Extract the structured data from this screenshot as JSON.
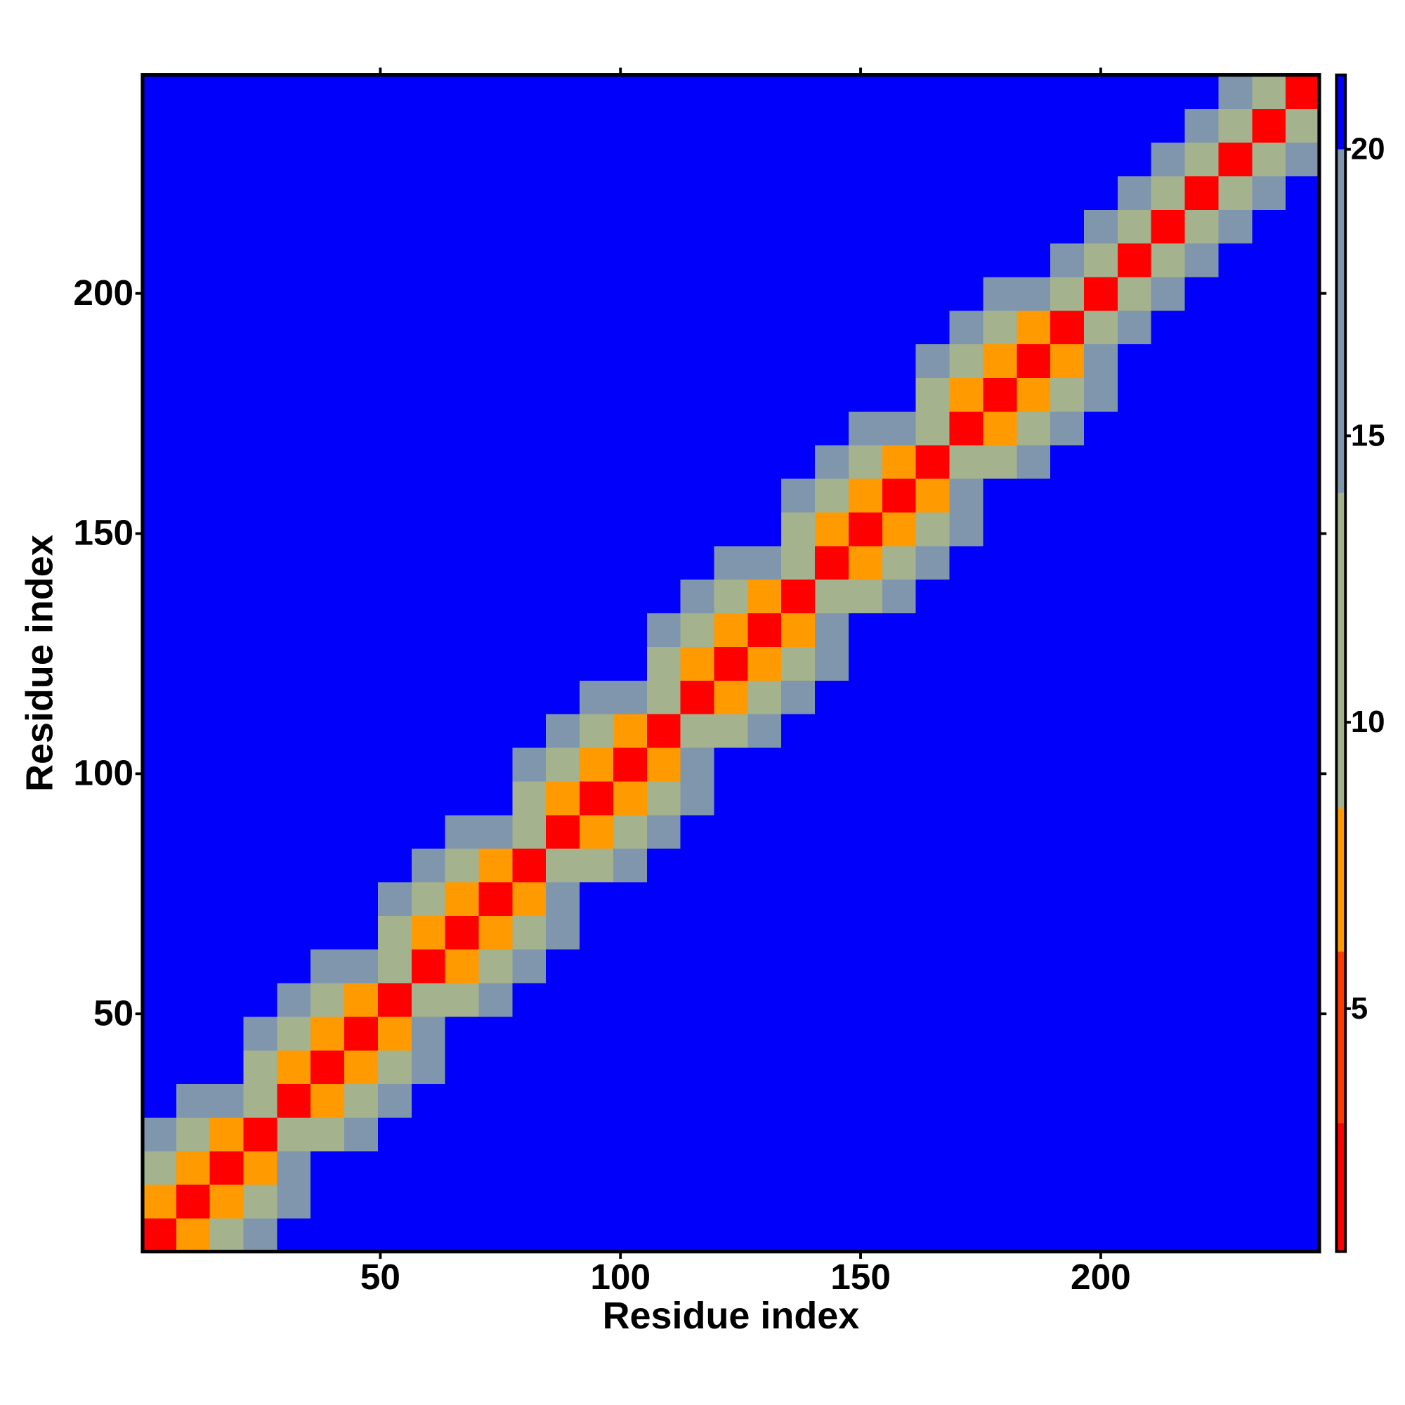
{
  "chart_data": {
    "type": "heatmap",
    "xlabel": "Residue index",
    "ylabel": "Residue index",
    "xlim": [
      0.5,
      245.5
    ],
    "ylim": [
      0.5,
      245.5
    ],
    "xticks": [
      50,
      100,
      150,
      200
    ],
    "yticks": [
      50,
      100,
      150,
      200
    ],
    "clim": [
      0.76,
      21.3
    ],
    "cticks": [
      5,
      10,
      15,
      20
    ],
    "color_bounds": [
      3,
      6,
      8.5,
      14,
      20
    ],
    "colors": [
      "#ff0000",
      "#ff3a00",
      "#ff9a00",
      "#a4b28e",
      "#7f96ad",
      "#0000fb"
    ],
    "bins": [
      0.5,
      7.5,
      14.5,
      21.5,
      28.5,
      35.5,
      42.5,
      49.5,
      56.5,
      63.5,
      70.5,
      77.5,
      84.5,
      91.5,
      98.5,
      105.5,
      112.5,
      119.5,
      126.5,
      133.5,
      140.5,
      147.5,
      154.5,
      161.5,
      168.5,
      175.5,
      182.5,
      189.5,
      196.5,
      203.5,
      210.5,
      217.5,
      224.5,
      231.5,
      238.5,
      245.5
    ],
    "values": [
      [
        3,
        8,
        13,
        17,
        25,
        25,
        25,
        25,
        25,
        25,
        25,
        25,
        25,
        25,
        25,
        25,
        25,
        25,
        25,
        25,
        25,
        25,
        25,
        25,
        25,
        25,
        25,
        25,
        25,
        25,
        25,
        25,
        25,
        25,
        25
      ],
      [
        8,
        3,
        8,
        13,
        17,
        25,
        25,
        25,
        25,
        25,
        25,
        25,
        25,
        25,
        25,
        25,
        25,
        25,
        25,
        25,
        25,
        25,
        25,
        25,
        25,
        25,
        25,
        25,
        25,
        25,
        25,
        25,
        25,
        25,
        25
      ],
      [
        13,
        8,
        3,
        8,
        19,
        25,
        25,
        25,
        25,
        25,
        25,
        25,
        25,
        25,
        25,
        25,
        25,
        25,
        25,
        25,
        25,
        25,
        25,
        25,
        25,
        25,
        25,
        25,
        25,
        25,
        25,
        25,
        25,
        25,
        25
      ],
      [
        17,
        13,
        8,
        3,
        11,
        13,
        17,
        25,
        25,
        25,
        25,
        25,
        25,
        25,
        25,
        25,
        25,
        25,
        25,
        25,
        25,
        25,
        25,
        25,
        25,
        25,
        25,
        25,
        25,
        25,
        25,
        25,
        25,
        25,
        25
      ],
      [
        25,
        17,
        19,
        11,
        3,
        8,
        13,
        17,
        25,
        25,
        25,
        25,
        25,
        25,
        25,
        25,
        25,
        25,
        25,
        25,
        25,
        25,
        25,
        25,
        25,
        25,
        25,
        25,
        25,
        25,
        25,
        25,
        25,
        25,
        25
      ],
      [
        25,
        25,
        25,
        13,
        8,
        3,
        8,
        13,
        17,
        25,
        25,
        25,
        25,
        25,
        25,
        25,
        25,
        25,
        25,
        25,
        25,
        25,
        25,
        25,
        25,
        25,
        25,
        25,
        25,
        25,
        25,
        25,
        25,
        25,
        25
      ],
      [
        25,
        25,
        25,
        17,
        13,
        8,
        3,
        8,
        19,
        25,
        25,
        25,
        25,
        25,
        25,
        25,
        25,
        25,
        25,
        25,
        25,
        25,
        25,
        25,
        25,
        25,
        25,
        25,
        25,
        25,
        25,
        25,
        25,
        25,
        25
      ],
      [
        25,
        25,
        25,
        25,
        17,
        13,
        8,
        3,
        11,
        13,
        17,
        25,
        25,
        25,
        25,
        25,
        25,
        25,
        25,
        25,
        25,
        25,
        25,
        25,
        25,
        25,
        25,
        25,
        25,
        25,
        25,
        25,
        25,
        25,
        25
      ],
      [
        25,
        25,
        25,
        25,
        25,
        17,
        19,
        11,
        3,
        8,
        13,
        17,
        25,
        25,
        25,
        25,
        25,
        25,
        25,
        25,
        25,
        25,
        25,
        25,
        25,
        25,
        25,
        25,
        25,
        25,
        25,
        25,
        25,
        25,
        25
      ],
      [
        25,
        25,
        25,
        25,
        25,
        25,
        25,
        13,
        8,
        3,
        8,
        13,
        17,
        25,
        25,
        25,
        25,
        25,
        25,
        25,
        25,
        25,
        25,
        25,
        25,
        25,
        25,
        25,
        25,
        25,
        25,
        25,
        25,
        25,
        25
      ],
      [
        25,
        25,
        25,
        25,
        25,
        25,
        25,
        17,
        13,
        8,
        3,
        8,
        19,
        25,
        25,
        25,
        25,
        25,
        25,
        25,
        25,
        25,
        25,
        25,
        25,
        25,
        25,
        25,
        25,
        25,
        25,
        25,
        25,
        25,
        25
      ],
      [
        25,
        25,
        25,
        25,
        25,
        25,
        25,
        25,
        17,
        13,
        8,
        3,
        11,
        13,
        17,
        25,
        25,
        25,
        25,
        25,
        25,
        25,
        25,
        25,
        25,
        25,
        25,
        25,
        25,
        25,
        25,
        25,
        25,
        25,
        25
      ],
      [
        25,
        25,
        25,
        25,
        25,
        25,
        25,
        25,
        25,
        17,
        19,
        11,
        3,
        8,
        13,
        17,
        25,
        25,
        25,
        25,
        25,
        25,
        25,
        25,
        25,
        25,
        25,
        25,
        25,
        25,
        25,
        25,
        25,
        25,
        25
      ],
      [
        25,
        25,
        25,
        25,
        25,
        25,
        25,
        25,
        25,
        25,
        25,
        13,
        8,
        3,
        8,
        13,
        17,
        25,
        25,
        25,
        25,
        25,
        25,
        25,
        25,
        25,
        25,
        25,
        25,
        25,
        25,
        25,
        25,
        25,
        25
      ],
      [
        25,
        25,
        25,
        25,
        25,
        25,
        25,
        25,
        25,
        25,
        25,
        17,
        13,
        8,
        3,
        8,
        19,
        25,
        25,
        25,
        25,
        25,
        25,
        25,
        25,
        25,
        25,
        25,
        25,
        25,
        25,
        25,
        25,
        25,
        25
      ],
      [
        25,
        25,
        25,
        25,
        25,
        25,
        25,
        25,
        25,
        25,
        25,
        25,
        17,
        13,
        8,
        3,
        11,
        13,
        17,
        25,
        25,
        25,
        25,
        25,
        25,
        25,
        25,
        25,
        25,
        25,
        25,
        25,
        25,
        25,
        25
      ],
      [
        25,
        25,
        25,
        25,
        25,
        25,
        25,
        25,
        25,
        25,
        25,
        25,
        25,
        17,
        19,
        11,
        3,
        8,
        13,
        17,
        25,
        25,
        25,
        25,
        25,
        25,
        25,
        25,
        25,
        25,
        25,
        25,
        25,
        25,
        25
      ],
      [
        25,
        25,
        25,
        25,
        25,
        25,
        25,
        25,
        25,
        25,
        25,
        25,
        25,
        25,
        25,
        13,
        8,
        3,
        8,
        13,
        17,
        25,
        25,
        25,
        25,
        25,
        25,
        25,
        25,
        25,
        25,
        25,
        25,
        25,
        25
      ],
      [
        25,
        25,
        25,
        25,
        25,
        25,
        25,
        25,
        25,
        25,
        25,
        25,
        25,
        25,
        25,
        17,
        13,
        8,
        3,
        8,
        19,
        25,
        25,
        25,
        25,
        25,
        25,
        25,
        25,
        25,
        25,
        25,
        25,
        25,
        25
      ],
      [
        25,
        25,
        25,
        25,
        25,
        25,
        25,
        25,
        25,
        25,
        25,
        25,
        25,
        25,
        25,
        25,
        17,
        13,
        8,
        3,
        11,
        13,
        17,
        25,
        25,
        25,
        25,
        25,
        25,
        25,
        25,
        25,
        25,
        25,
        25
      ],
      [
        25,
        25,
        25,
        25,
        25,
        25,
        25,
        25,
        25,
        25,
        25,
        25,
        25,
        25,
        25,
        25,
        25,
        17,
        19,
        11,
        3,
        8,
        13,
        17,
        25,
        25,
        25,
        25,
        25,
        25,
        25,
        25,
        25,
        25,
        25
      ],
      [
        25,
        25,
        25,
        25,
        25,
        25,
        25,
        25,
        25,
        25,
        25,
        25,
        25,
        25,
        25,
        25,
        25,
        25,
        25,
        13,
        8,
        3,
        8,
        13,
        17,
        25,
        25,
        25,
        25,
        25,
        25,
        25,
        25,
        25,
        25
      ],
      [
        25,
        25,
        25,
        25,
        25,
        25,
        25,
        25,
        25,
        25,
        25,
        25,
        25,
        25,
        25,
        25,
        25,
        25,
        25,
        17,
        13,
        8,
        3,
        8,
        19,
        25,
        25,
        25,
        25,
        25,
        25,
        25,
        25,
        25,
        25
      ],
      [
        25,
        25,
        25,
        25,
        25,
        25,
        25,
        25,
        25,
        25,
        25,
        25,
        25,
        25,
        25,
        25,
        25,
        25,
        25,
        25,
        17,
        13,
        8,
        3,
        11,
        13,
        17,
        25,
        25,
        25,
        25,
        25,
        25,
        25,
        25
      ],
      [
        25,
        25,
        25,
        25,
        25,
        25,
        25,
        25,
        25,
        25,
        25,
        25,
        25,
        25,
        25,
        25,
        25,
        25,
        25,
        25,
        25,
        17,
        19,
        11,
        3,
        8,
        13,
        17,
        25,
        25,
        25,
        25,
        25,
        25,
        25
      ],
      [
        25,
        25,
        25,
        25,
        25,
        25,
        25,
        25,
        25,
        25,
        25,
        25,
        25,
        25,
        25,
        25,
        25,
        25,
        25,
        25,
        25,
        25,
        25,
        13,
        8,
        3,
        8,
        13,
        17,
        25,
        25,
        25,
        25,
        25,
        25
      ],
      [
        25,
        25,
        25,
        25,
        25,
        25,
        25,
        25,
        25,
        25,
        25,
        25,
        25,
        25,
        25,
        25,
        25,
        25,
        25,
        25,
        25,
        25,
        25,
        17,
        13,
        8,
        3,
        8,
        19,
        25,
        25,
        25,
        25,
        25,
        25
      ],
      [
        25,
        25,
        25,
        25,
        25,
        25,
        25,
        25,
        25,
        25,
        25,
        25,
        25,
        25,
        25,
        25,
        25,
        25,
        25,
        25,
        25,
        25,
        25,
        25,
        17,
        13,
        8,
        3,
        11,
        19,
        25,
        25,
        25,
        25,
        25
      ],
      [
        25,
        25,
        25,
        25,
        25,
        25,
        25,
        25,
        25,
        25,
        25,
        25,
        25,
        25,
        25,
        25,
        25,
        25,
        25,
        25,
        25,
        25,
        25,
        25,
        25,
        17,
        19,
        11,
        3,
        11,
        19,
        25,
        25,
        25,
        25
      ],
      [
        25,
        25,
        25,
        25,
        25,
        25,
        25,
        25,
        25,
        25,
        25,
        25,
        25,
        25,
        25,
        25,
        25,
        25,
        25,
        25,
        25,
        25,
        25,
        25,
        25,
        25,
        25,
        19,
        11,
        3,
        11,
        19,
        25,
        25,
        25
      ],
      [
        25,
        25,
        25,
        25,
        25,
        25,
        25,
        25,
        25,
        25,
        25,
        25,
        25,
        25,
        25,
        25,
        25,
        25,
        25,
        25,
        25,
        25,
        25,
        25,
        25,
        25,
        25,
        25,
        19,
        11,
        3,
        11,
        19,
        25,
        25
      ],
      [
        25,
        25,
        25,
        25,
        25,
        25,
        25,
        25,
        25,
        25,
        25,
        25,
        25,
        25,
        25,
        25,
        25,
        25,
        25,
        25,
        25,
        25,
        25,
        25,
        25,
        25,
        25,
        25,
        25,
        19,
        11,
        3,
        11,
        19,
        25
      ],
      [
        25,
        25,
        25,
        25,
        25,
        25,
        25,
        25,
        25,
        25,
        25,
        25,
        25,
        25,
        25,
        25,
        25,
        25,
        25,
        25,
        25,
        25,
        25,
        25,
        25,
        25,
        25,
        25,
        25,
        25,
        19,
        11,
        3,
        11,
        19
      ],
      [
        25,
        25,
        25,
        25,
        25,
        25,
        25,
        25,
        25,
        25,
        25,
        25,
        25,
        25,
        25,
        25,
        25,
        25,
        25,
        25,
        25,
        25,
        25,
        25,
        25,
        25,
        25,
        25,
        25,
        25,
        25,
        19,
        11,
        3,
        11
      ],
      [
        25,
        25,
        25,
        25,
        25,
        25,
        25,
        25,
        25,
        25,
        25,
        25,
        25,
        25,
        25,
        25,
        25,
        25,
        25,
        25,
        25,
        25,
        25,
        25,
        25,
        25,
        25,
        25,
        25,
        25,
        25,
        25,
        19,
        11,
        3
      ]
    ]
  }
}
